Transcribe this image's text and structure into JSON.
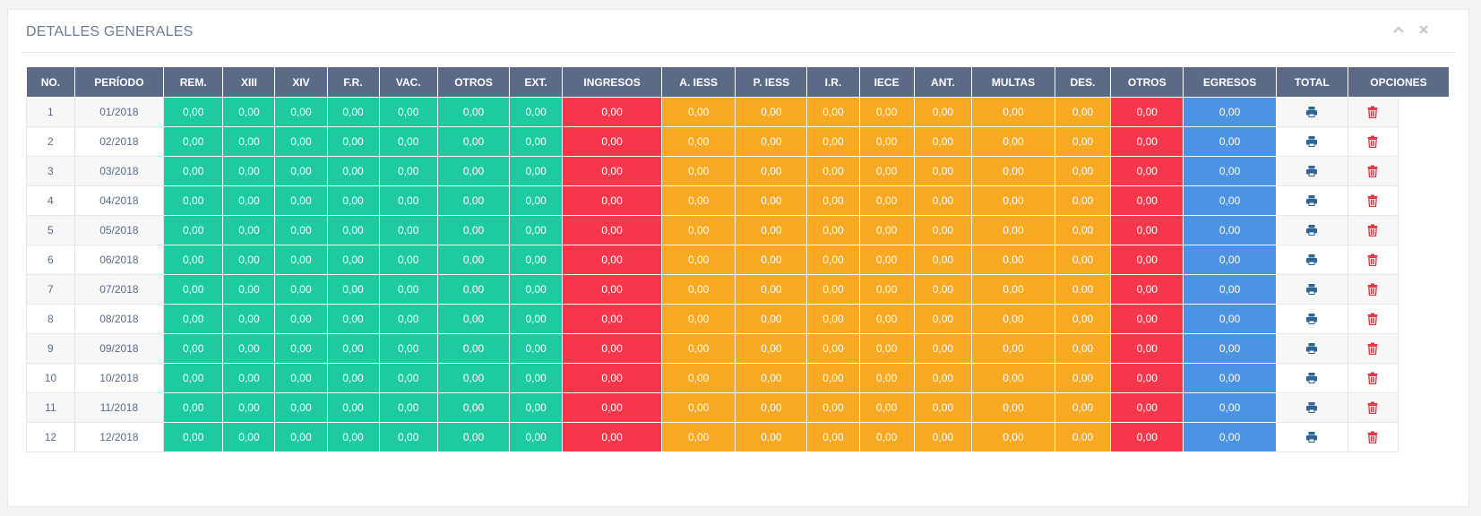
{
  "panel": {
    "title": "DETALLES GENERALES",
    "tools": [
      "chevron-up-icon",
      "close-icon"
    ]
  },
  "colors": {
    "header": "#5b6b87",
    "income": "#1ecaa0",
    "income_total": "#f5364b",
    "deduction": "#f9a822",
    "deduction_total": "#f5364b",
    "total": "#4c93e3",
    "print_icon": "#2d6494",
    "delete_icon": "#e0333f"
  },
  "table": {
    "columns": [
      "NO.",
      "PERÍODO",
      "REM.",
      "XIII",
      "XIV",
      "F.R.",
      "VAC.",
      "OTROS",
      "EXT.",
      "INGRESOS",
      "A. IESS",
      "P. IESS",
      "I.R.",
      "IECE",
      "ANT.",
      "MULTAS",
      "DES.",
      "OTROS",
      "EGRESOS",
      "TOTAL",
      "OPCIONES"
    ],
    "rows": [
      {
        "no": "1",
        "period": "01/2018",
        "values": [
          "0,00",
          "0,00",
          "0,00",
          "0,00",
          "0,00",
          "0,00",
          "0,00",
          "0,00",
          "0,00",
          "0,00",
          "0,00",
          "0,00",
          "0,00",
          "0,00",
          "0,00",
          "0,00",
          "0,00"
        ]
      },
      {
        "no": "2",
        "period": "02/2018",
        "values": [
          "0,00",
          "0,00",
          "0,00",
          "0,00",
          "0,00",
          "0,00",
          "0,00",
          "0,00",
          "0,00",
          "0,00",
          "0,00",
          "0,00",
          "0,00",
          "0,00",
          "0,00",
          "0,00",
          "0,00"
        ]
      },
      {
        "no": "3",
        "period": "03/2018",
        "values": [
          "0,00",
          "0,00",
          "0,00",
          "0,00",
          "0,00",
          "0,00",
          "0,00",
          "0,00",
          "0,00",
          "0,00",
          "0,00",
          "0,00",
          "0,00",
          "0,00",
          "0,00",
          "0,00",
          "0,00"
        ]
      },
      {
        "no": "4",
        "period": "04/2018",
        "values": [
          "0,00",
          "0,00",
          "0,00",
          "0,00",
          "0,00",
          "0,00",
          "0,00",
          "0,00",
          "0,00",
          "0,00",
          "0,00",
          "0,00",
          "0,00",
          "0,00",
          "0,00",
          "0,00",
          "0,00"
        ]
      },
      {
        "no": "5",
        "period": "05/2018",
        "values": [
          "0,00",
          "0,00",
          "0,00",
          "0,00",
          "0,00",
          "0,00",
          "0,00",
          "0,00",
          "0,00",
          "0,00",
          "0,00",
          "0,00",
          "0,00",
          "0,00",
          "0,00",
          "0,00",
          "0,00"
        ]
      },
      {
        "no": "6",
        "period": "06/2018",
        "values": [
          "0,00",
          "0,00",
          "0,00",
          "0,00",
          "0,00",
          "0,00",
          "0,00",
          "0,00",
          "0,00",
          "0,00",
          "0,00",
          "0,00",
          "0,00",
          "0,00",
          "0,00",
          "0,00",
          "0,00"
        ]
      },
      {
        "no": "7",
        "period": "07/2018",
        "values": [
          "0,00",
          "0,00",
          "0,00",
          "0,00",
          "0,00",
          "0,00",
          "0,00",
          "0,00",
          "0,00",
          "0,00",
          "0,00",
          "0,00",
          "0,00",
          "0,00",
          "0,00",
          "0,00",
          "0,00"
        ]
      },
      {
        "no": "8",
        "period": "08/2018",
        "values": [
          "0,00",
          "0,00",
          "0,00",
          "0,00",
          "0,00",
          "0,00",
          "0,00",
          "0,00",
          "0,00",
          "0,00",
          "0,00",
          "0,00",
          "0,00",
          "0,00",
          "0,00",
          "0,00",
          "0,00"
        ]
      },
      {
        "no": "9",
        "period": "09/2018",
        "values": [
          "0,00",
          "0,00",
          "0,00",
          "0,00",
          "0,00",
          "0,00",
          "0,00",
          "0,00",
          "0,00",
          "0,00",
          "0,00",
          "0,00",
          "0,00",
          "0,00",
          "0,00",
          "0,00",
          "0,00"
        ]
      },
      {
        "no": "10",
        "period": "10/2018",
        "values": [
          "0,00",
          "0,00",
          "0,00",
          "0,00",
          "0,00",
          "0,00",
          "0,00",
          "0,00",
          "0,00",
          "0,00",
          "0,00",
          "0,00",
          "0,00",
          "0,00",
          "0,00",
          "0,00",
          "0,00"
        ]
      },
      {
        "no": "11",
        "period": "11/2018",
        "values": [
          "0,00",
          "0,00",
          "0,00",
          "0,00",
          "0,00",
          "0,00",
          "0,00",
          "0,00",
          "0,00",
          "0,00",
          "0,00",
          "0,00",
          "0,00",
          "0,00",
          "0,00",
          "0,00",
          "0,00"
        ]
      },
      {
        "no": "12",
        "period": "12/2018",
        "values": [
          "0,00",
          "0,00",
          "0,00",
          "0,00",
          "0,00",
          "0,00",
          "0,00",
          "0,00",
          "0,00",
          "0,00",
          "0,00",
          "0,00",
          "0,00",
          "0,00",
          "0,00",
          "0,00",
          "0,00"
        ]
      }
    ],
    "row_icons": [
      "print-icon",
      "trash-icon"
    ]
  }
}
